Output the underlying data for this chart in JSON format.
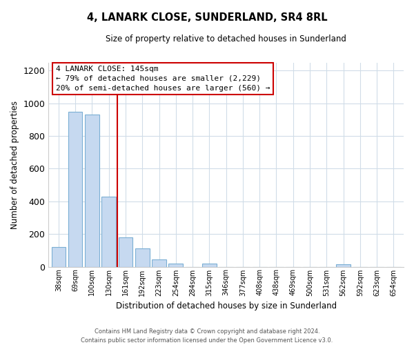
{
  "title": "4, LANARK CLOSE, SUNDERLAND, SR4 8RL",
  "subtitle": "Size of property relative to detached houses in Sunderland",
  "xlabel": "Distribution of detached houses by size in Sunderland",
  "ylabel": "Number of detached properties",
  "categories": [
    "38sqm",
    "69sqm",
    "100sqm",
    "130sqm",
    "161sqm",
    "192sqm",
    "223sqm",
    "254sqm",
    "284sqm",
    "315sqm",
    "346sqm",
    "377sqm",
    "408sqm",
    "438sqm",
    "469sqm",
    "500sqm",
    "531sqm",
    "562sqm",
    "592sqm",
    "623sqm",
    "654sqm"
  ],
  "values": [
    120,
    950,
    930,
    430,
    180,
    110,
    45,
    18,
    0,
    18,
    0,
    0,
    0,
    0,
    0,
    0,
    0,
    15,
    0,
    0,
    0
  ],
  "bar_color": "#c6d9f0",
  "bar_edge_color": "#7bafd4",
  "vline_x": 3.5,
  "vline_color": "#cc0000",
  "annotation_title": "4 LANARK CLOSE: 145sqm",
  "annotation_line1": "← 79% of detached houses are smaller (2,229)",
  "annotation_line2": "20% of semi-detached houses are larger (560) →",
  "annotation_box_color": "#ffffff",
  "annotation_box_edge": "#cc0000",
  "ylim": [
    0,
    1250
  ],
  "yticks": [
    0,
    200,
    400,
    600,
    800,
    1000,
    1200
  ],
  "footer_line1": "Contains HM Land Registry data © Crown copyright and database right 2024.",
  "footer_line2": "Contains public sector information licensed under the Open Government Licence v3.0.",
  "background_color": "#ffffff",
  "grid_color": "#d0dce8"
}
